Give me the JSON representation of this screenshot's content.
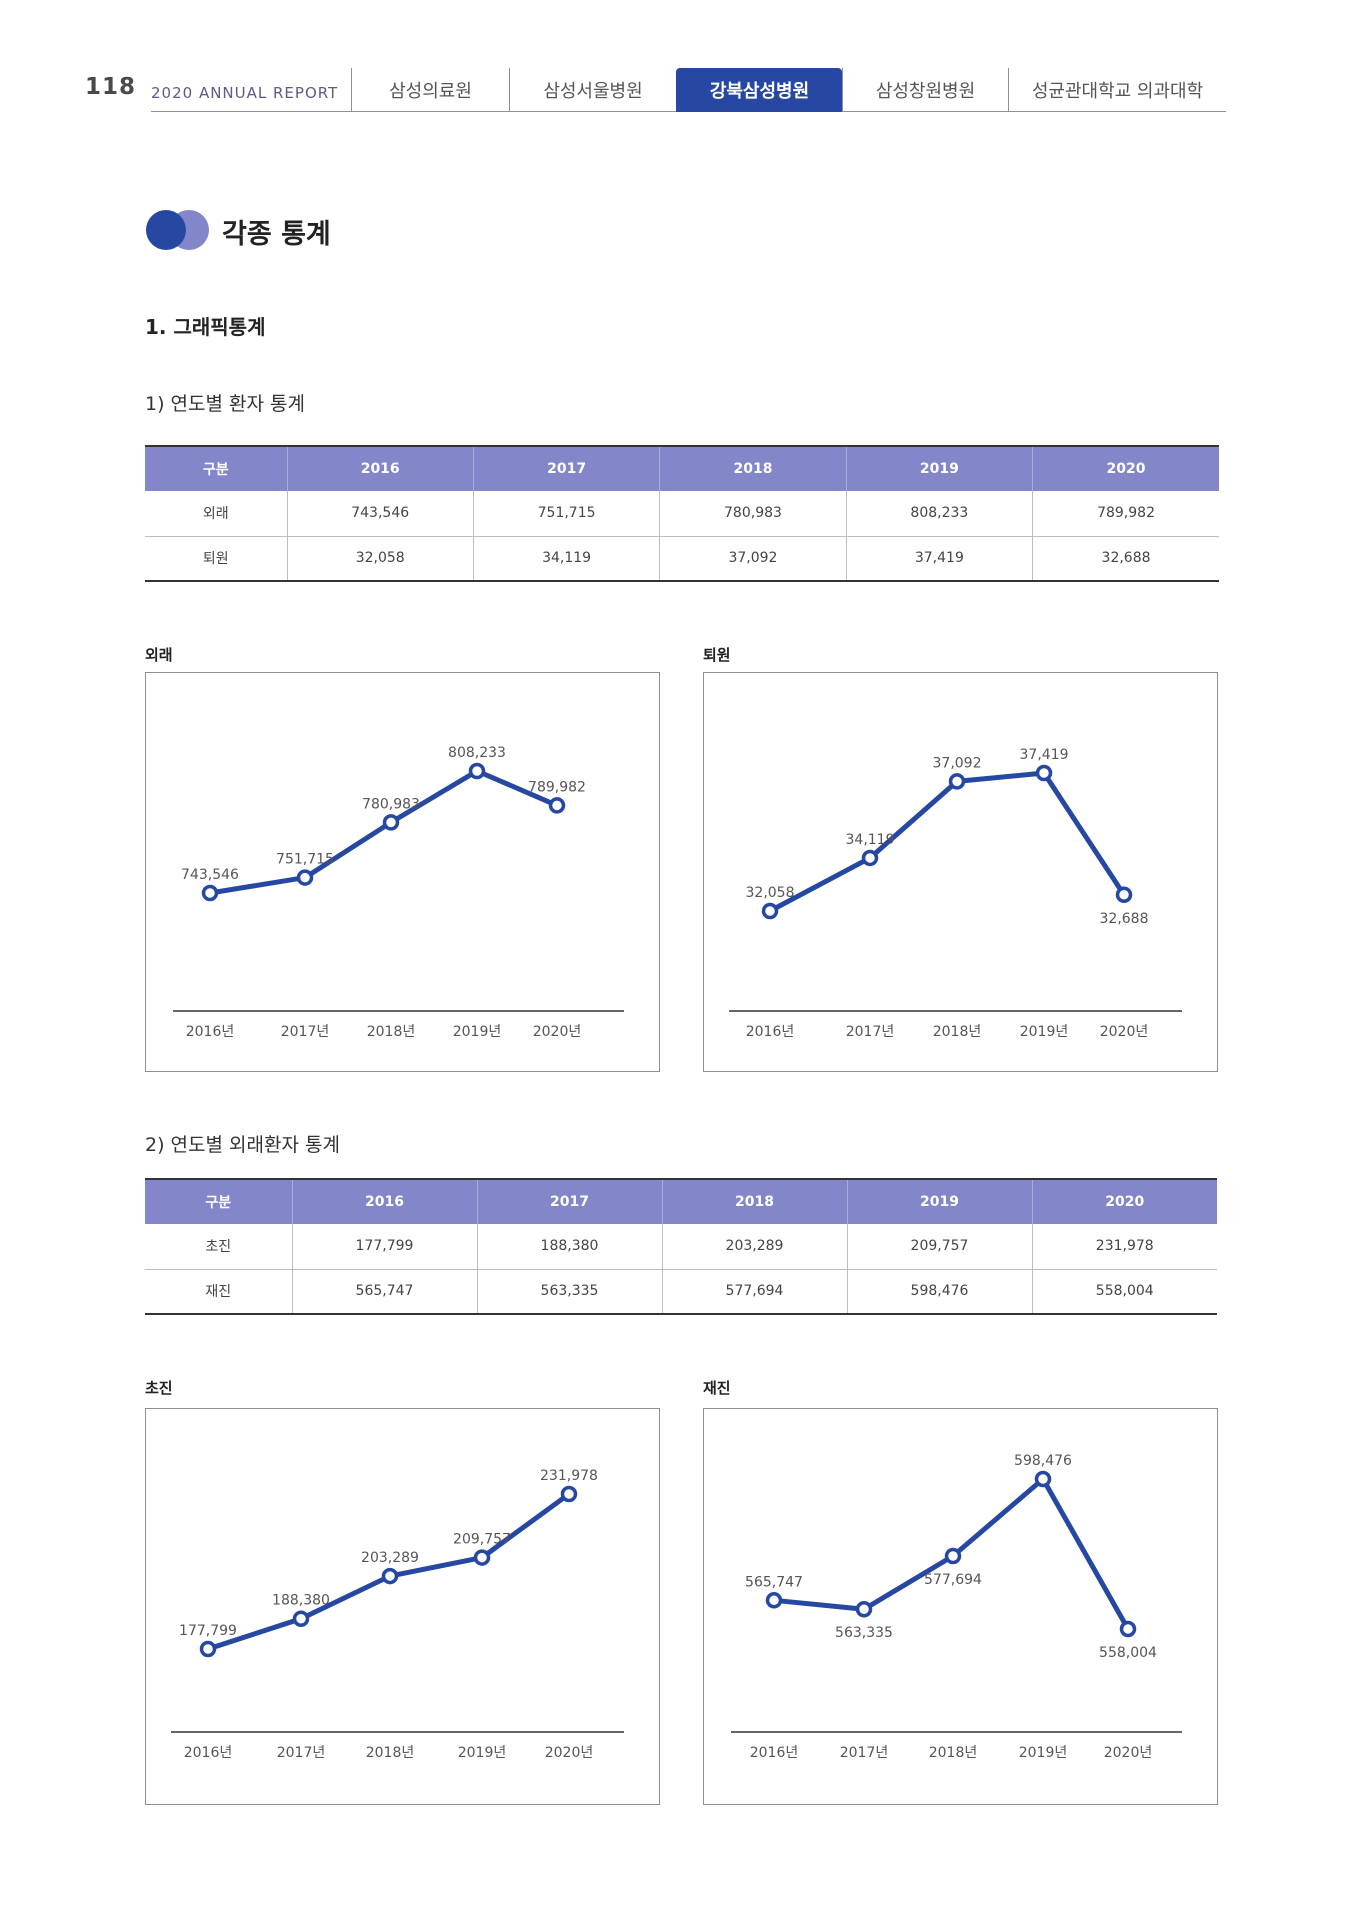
{
  "header": {
    "page_number": "118",
    "report_title": "2020 ANNUAL REPORT",
    "nav": [
      {
        "label": "삼성의료원",
        "active": false
      },
      {
        "label": "삼성서울병원",
        "active": false
      },
      {
        "label": "강북삼성병원",
        "active": true
      },
      {
        "label": "삼성창원병원",
        "active": false
      },
      {
        "label": "성균관대학교 의과대학",
        "active": false
      }
    ]
  },
  "colors": {
    "accent": "#2748a2",
    "table_header": "#8387c9",
    "icon_light": "#8387c9"
  },
  "section": {
    "title": "각종 통계",
    "subtitle": "1. 그래픽통계"
  },
  "table1": {
    "title": "1) 연도별 환자 통계",
    "headers": [
      "구분",
      "2016",
      "2017",
      "2018",
      "2019",
      "2020"
    ],
    "rows": [
      [
        "외래",
        "743,546",
        "751,715",
        "780,983",
        "808,233",
        "789,982"
      ],
      [
        "퇴원",
        "32,058",
        "34,119",
        "37,092",
        "37,419",
        "32,688"
      ]
    ]
  },
  "table2": {
    "title": "2) 연도별 외래환자 통계",
    "headers": [
      "구분",
      "2016",
      "2017",
      "2018",
      "2019",
      "2020"
    ],
    "rows": [
      [
        "초진",
        "177,799",
        "188,380",
        "203,289",
        "209,757",
        "231,978"
      ],
      [
        "재진",
        "565,747",
        "563,335",
        "577,694",
        "598,476",
        "558,004"
      ]
    ]
  },
  "chart_data": [
    {
      "type": "line",
      "title": "외래",
      "categories": [
        "2016년",
        "2017년",
        "2018년",
        "2019년",
        "2020년"
      ],
      "values": [
        743546,
        751715,
        780983,
        808233,
        789982
      ],
      "labels": [
        "743,546",
        "751,715",
        "780,983",
        "808,233",
        "789,982"
      ],
      "grid": false
    },
    {
      "type": "line",
      "title": "퇴원",
      "categories": [
        "2016년",
        "2017년",
        "2018년",
        "2019년",
        "2020년"
      ],
      "values": [
        32058,
        34119,
        37092,
        37419,
        32688
      ],
      "labels": [
        "32,058",
        "34,119",
        "37,092",
        "37,419",
        "32,688"
      ],
      "grid": false
    },
    {
      "type": "line",
      "title": "초진",
      "categories": [
        "2016년",
        "2017년",
        "2018년",
        "2019년",
        "2020년"
      ],
      "values": [
        177799,
        188380,
        203289,
        209757,
        231978
      ],
      "labels": [
        "177,799",
        "188,380",
        "203,289",
        "209,757",
        "231,978"
      ],
      "grid": false
    },
    {
      "type": "line",
      "title": "재진",
      "categories": [
        "2016년",
        "2017년",
        "2018년",
        "2019년",
        "2020년"
      ],
      "values": [
        565747,
        563335,
        577694,
        598476,
        558004
      ],
      "labels": [
        "565,747",
        "563,335",
        "577,694",
        "598,476",
        "558,004"
      ],
      "grid": false
    }
  ]
}
